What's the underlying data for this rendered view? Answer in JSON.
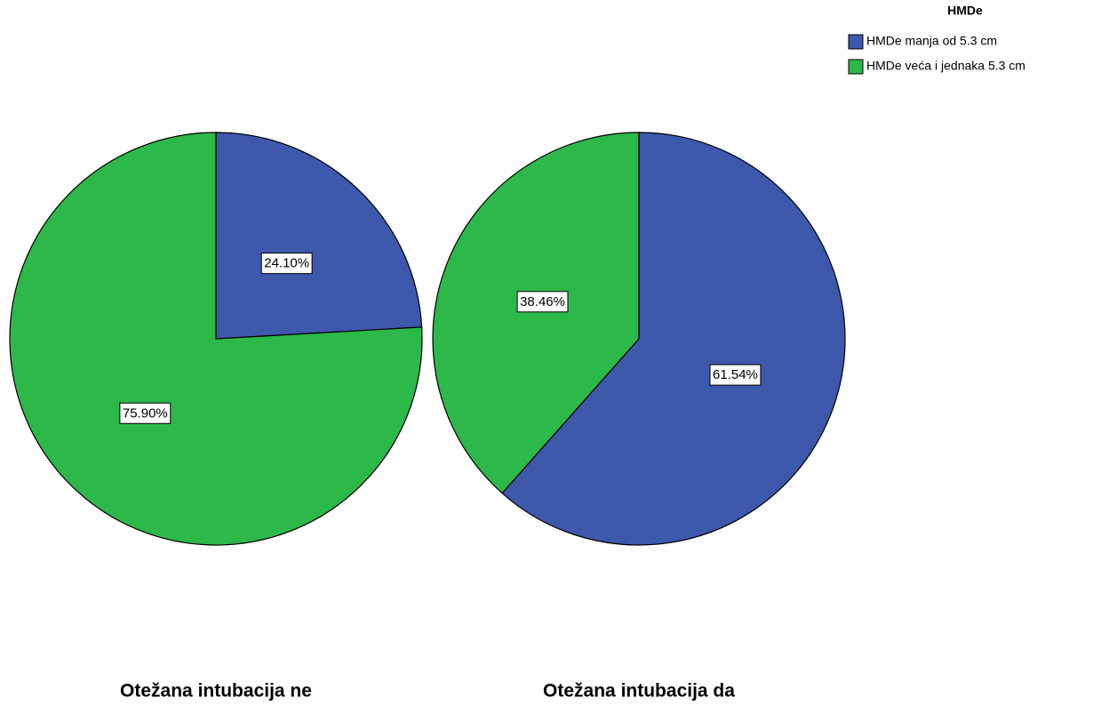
{
  "chart_data": {
    "type": "pie",
    "legend_title": "HMDe",
    "categories": [
      "HMDe manja od 5.3 cm",
      "HMDe veća i jednaka 5.3 cm"
    ],
    "colors": [
      "#3e58ac",
      "#2db84a"
    ],
    "legend": "top-right",
    "panels": [
      {
        "title": "Otežana intubacija ne",
        "values": [
          24.1,
          75.9
        ],
        "value_labels": [
          "24.10%",
          "75.90%"
        ]
      },
      {
        "title": "Otežana intubacija da",
        "values": [
          61.54,
          38.46
        ],
        "value_labels": [
          "61.54%",
          "38.46%"
        ]
      }
    ]
  }
}
